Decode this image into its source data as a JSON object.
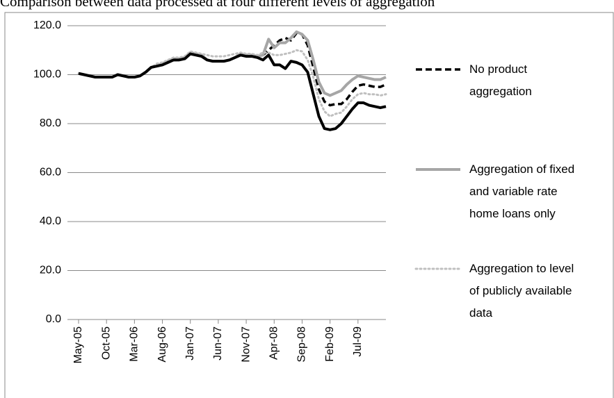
{
  "chart_data": {
    "type": "line",
    "title": "Comparison between data processed at four different levels of aggregation",
    "categories": [
      "May-05",
      null,
      null,
      null,
      null,
      "Oct-05",
      null,
      null,
      null,
      null,
      "Mar-06",
      null,
      null,
      null,
      null,
      "Aug-06",
      null,
      null,
      null,
      null,
      "Jan-07",
      null,
      null,
      null,
      null,
      "Jun-07",
      null,
      null,
      null,
      null,
      "Nov-07",
      null,
      null,
      null,
      null,
      "Apr-08",
      null,
      null,
      null,
      null,
      "Sep-08",
      null,
      null,
      null,
      null,
      "Feb-09",
      null,
      null,
      null,
      null,
      "Jul-09",
      null,
      null,
      null,
      null,
      null
    ],
    "series": [
      {
        "name": "No product aggregation",
        "color": "#000000",
        "line_style": "dashed",
        "values": [
          100.5,
          100,
          99.5,
          99,
          99,
          99,
          99,
          100,
          99.5,
          99,
          99,
          99.5,
          101,
          103,
          103.5,
          104,
          105,
          106,
          106,
          106.5,
          108.5,
          108,
          107.5,
          106,
          105.5,
          105.5,
          105.5,
          106,
          107,
          108,
          107.5,
          107.5,
          107,
          108,
          110,
          112,
          114,
          115,
          114,
          117,
          116.5,
          112,
          103,
          94,
          89,
          87.5,
          88,
          88,
          90,
          93,
          95.5,
          96,
          95.5,
          95,
          95,
          96
        ]
      },
      {
        "name": "Aggregation of fixed and variable rate home loans only",
        "color": "#a6a6a6",
        "line_style": "solid",
        "values": [
          100.5,
          100,
          99.5,
          99,
          99,
          99,
          99,
          100,
          99.5,
          99,
          99,
          99.5,
          101,
          103,
          103.5,
          104.5,
          105.5,
          106.5,
          106.5,
          107,
          109,
          108.5,
          108,
          106,
          105.5,
          105.5,
          105.5,
          106,
          107,
          108.5,
          108,
          108,
          107.5,
          108,
          114.5,
          111,
          113,
          113,
          115,
          117.5,
          116.5,
          114,
          106,
          97,
          92.5,
          91.5,
          92.5,
          93.5,
          96,
          98,
          99.5,
          99,
          98.5,
          98,
          98,
          99
        ]
      },
      {
        "name": "Aggregation to level of publicly available data",
        "color": "#bfbfbf",
        "line_style": "dotted",
        "values": [
          100.5,
          100,
          99.5,
          99,
          99,
          99,
          99,
          100,
          99.5,
          99,
          99,
          99.5,
          101,
          103,
          104.5,
          105,
          106,
          107,
          107,
          107.5,
          109.5,
          109,
          108.5,
          108,
          107.5,
          107.5,
          107.5,
          108,
          108.5,
          109,
          108.5,
          108.5,
          108,
          109,
          109,
          108,
          108,
          108.5,
          109,
          110,
          109.5,
          106,
          99,
          90,
          85,
          83,
          84,
          84.5,
          87,
          90,
          92,
          92.5,
          92,
          92,
          91.5,
          92
        ]
      },
      {
        "color": "#000000",
        "line_style": "solid",
        "values": [
          100.5,
          100,
          99.5,
          99,
          99,
          99,
          99,
          100,
          99.5,
          99,
          99,
          99.5,
          101,
          103,
          103.5,
          104,
          105,
          106,
          106,
          106.5,
          108.5,
          108,
          107.5,
          106,
          105.5,
          105.5,
          105.5,
          106,
          107,
          108,
          107.5,
          107.5,
          107,
          106,
          108,
          104,
          104,
          102.5,
          105.5,
          105,
          104,
          101,
          92,
          83,
          78,
          77.5,
          78,
          80,
          83,
          86,
          88.5,
          88.5,
          87.5,
          87,
          86.5,
          87
        ]
      }
    ],
    "ylim": [
      0,
      120
    ],
    "yticks": [
      {
        "value": 0,
        "label": "0.0"
      },
      {
        "value": 20,
        "label": "20.0"
      },
      {
        "value": 40,
        "label": "40.0"
      },
      {
        "value": 60,
        "label": "60.0"
      },
      {
        "value": 80,
        "label": "80.0"
      },
      {
        "value": 100,
        "label": "100.0"
      },
      {
        "value": 120,
        "label": "120.0"
      }
    ],
    "grid": true,
    "legend": "right"
  }
}
